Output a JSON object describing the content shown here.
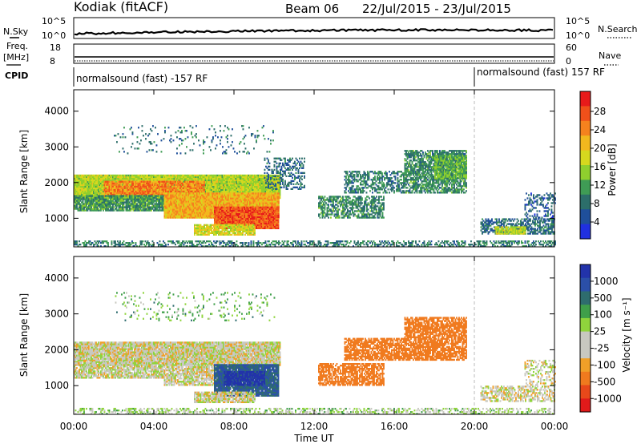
{
  "header": {
    "station": "Kodiak (fitACF)",
    "beam": "Beam 06",
    "dates": "22/Jul/2015 - 23/Jul/2015"
  },
  "status_panels": {
    "nsky_label": "N.Sky",
    "nsearch_label": "N.Search",
    "noise_ticks": [
      "10^5",
      "10^0"
    ],
    "freq_label_top": "Freq.",
    "freq_label_unit": "[MHz]",
    "freq_ticks": [
      "18",
      "8"
    ],
    "nave_ticks": [
      "60",
      "0"
    ],
    "nave_label": "Nave",
    "cpid_label": "CPID",
    "cpid_segments": [
      {
        "text": "normalsound (fast) -157 RF",
        "start_hour": 0,
        "end_hour": 20
      },
      {
        "text": "normalsound (fast) 157 RF",
        "start_hour": 20,
        "end_hour": 24
      }
    ]
  },
  "colorbars": {
    "power": {
      "label": "Power [dB]",
      "ticks": [
        "28",
        "24",
        "20",
        "16",
        "12",
        "8",
        "4"
      ],
      "colors": [
        "#e81a1a",
        "#f0501a",
        "#f5821e",
        "#f2b81e",
        "#d6d81e",
        "#8fcf2e",
        "#3f9c55",
        "#2c6e6a",
        "#1f4f9a",
        "#2030e0"
      ]
    },
    "velocity": {
      "label": "Velocity [m s⁻¹]",
      "ticks": [
        "1000",
        "500",
        "100",
        "25",
        "-25",
        "-100",
        "-500",
        "-1000"
      ],
      "colors": [
        "#2233aa",
        "#2b4fa8",
        "#2e6c6e",
        "#3f9f4a",
        "#8fd43c",
        "#c8c8c0",
        "#c8c8c0",
        "#f0a028",
        "#f07a1e",
        "#e8481a",
        "#e01a1a"
      ]
    }
  },
  "chart_data": [
    {
      "type": "heatmap",
      "name": "power",
      "ylabel": "Slant Range [km]",
      "xlabel": "Time UT",
      "ylim": [
        200,
        4600
      ],
      "xlim_hours": [
        0,
        24
      ],
      "yticks": [
        "4000",
        "3000",
        "2000",
        "1000"
      ],
      "clim": [
        0,
        32
      ],
      "blobs": [
        {
          "t0": 0.0,
          "t1": 10.3,
          "r0": 1550,
          "r1": 2200,
          "v": 16,
          "w": 1.0
        },
        {
          "t0": 1.5,
          "t1": 6.5,
          "r0": 1600,
          "r1": 2050,
          "v": 25,
          "w": 0.9
        },
        {
          "t0": 0.0,
          "t1": 4.5,
          "r0": 1200,
          "r1": 1650,
          "v": 10,
          "w": 0.9
        },
        {
          "t0": 4.5,
          "t1": 10.2,
          "r0": 1000,
          "r1": 1700,
          "v": 22,
          "w": 1.0
        },
        {
          "t0": 7.0,
          "t1": 10.2,
          "r0": 700,
          "r1": 1300,
          "v": 28,
          "w": 1.0
        },
        {
          "t0": 6.0,
          "t1": 9.0,
          "r0": 520,
          "r1": 800,
          "v": 18,
          "w": 0.9
        },
        {
          "t0": 9.5,
          "t1": 11.5,
          "r0": 1800,
          "r1": 2700,
          "v": 6,
          "w": 0.35
        },
        {
          "t0": 12.2,
          "t1": 15.5,
          "r0": 1000,
          "r1": 1600,
          "v": 9,
          "w": 0.6
        },
        {
          "t0": 13.5,
          "t1": 16.5,
          "r0": 1700,
          "r1": 2300,
          "v": 8,
          "w": 0.55
        },
        {
          "t0": 16.5,
          "t1": 19.6,
          "r0": 1700,
          "r1": 2900,
          "v": 9,
          "w": 0.7
        },
        {
          "t0": 18.0,
          "t1": 19.6,
          "r0": 2100,
          "r1": 2750,
          "v": 12,
          "w": 0.9
        },
        {
          "t0": 20.3,
          "t1": 24.0,
          "r0": 550,
          "r1": 1000,
          "v": 6,
          "w": 0.6
        },
        {
          "t0": 21.0,
          "t1": 22.5,
          "r0": 550,
          "r1": 750,
          "v": 16,
          "w": 0.9
        },
        {
          "t0": 22.5,
          "t1": 24.0,
          "r0": 1000,
          "r1": 1700,
          "v": 5,
          "w": 0.35
        },
        {
          "t0": 0.0,
          "t1": 24.0,
          "r0": 200,
          "r1": 380,
          "v": 8,
          "w": 0.45
        },
        {
          "t0": 2.0,
          "t1": 10.0,
          "r0": 2800,
          "r1": 3600,
          "v": 7,
          "w": 0.08
        }
      ]
    },
    {
      "type": "heatmap",
      "name": "velocity",
      "ylabel": "Slant Range [km]",
      "xlabel": "Time UT",
      "ylim": [
        200,
        4600
      ],
      "xlim_hours": [
        0,
        24
      ],
      "yticks": [
        "4000",
        "3000",
        "2000",
        "1000"
      ],
      "xticks": [
        "00:00",
        "04:00",
        "08:00",
        "12:00",
        "16:00",
        "20:00",
        "00:00"
      ],
      "clim": [
        -1000,
        1000
      ],
      "blobs": [
        {
          "t0": 0.0,
          "t1": 10.3,
          "r0": 1550,
          "r1": 2200,
          "v": 0,
          "w": 0.95
        },
        {
          "t0": 0.0,
          "t1": 4.5,
          "r0": 1200,
          "r1": 1650,
          "v": 5,
          "w": 0.8
        },
        {
          "t0": 4.5,
          "t1": 7.5,
          "r0": 1000,
          "r1": 1500,
          "v": 0,
          "w": 0.8
        },
        {
          "t0": 7.0,
          "t1": 10.2,
          "r0": 700,
          "r1": 1600,
          "v": 300,
          "w": 0.95
        },
        {
          "t0": 7.5,
          "t1": 9.5,
          "r0": 1000,
          "r1": 1400,
          "v": 800,
          "w": 0.7
        },
        {
          "t0": 6.0,
          "t1": 9.0,
          "r0": 520,
          "r1": 800,
          "v": 0,
          "w": 0.85
        },
        {
          "t0": 12.2,
          "t1": 15.5,
          "r0": 1000,
          "r1": 1600,
          "v": -400,
          "w": 0.7
        },
        {
          "t0": 13.5,
          "t1": 16.5,
          "r0": 1700,
          "r1": 2300,
          "v": -450,
          "w": 0.75
        },
        {
          "t0": 16.5,
          "t1": 19.6,
          "r0": 1700,
          "r1": 2900,
          "v": -350,
          "w": 0.75
        },
        {
          "t0": 20.3,
          "t1": 24.0,
          "r0": 550,
          "r1": 1000,
          "v": 0,
          "w": 0.55
        },
        {
          "t0": 22.5,
          "t1": 24.0,
          "r0": 1000,
          "r1": 1700,
          "v": 0,
          "w": 0.35
        },
        {
          "t0": 0.0,
          "t1": 24.0,
          "r0": 200,
          "r1": 380,
          "v": 30,
          "w": 0.4
        },
        {
          "t0": 2.0,
          "t1": 10.0,
          "r0": 2800,
          "r1": 3600,
          "v": 60,
          "w": 0.08
        }
      ]
    }
  ]
}
